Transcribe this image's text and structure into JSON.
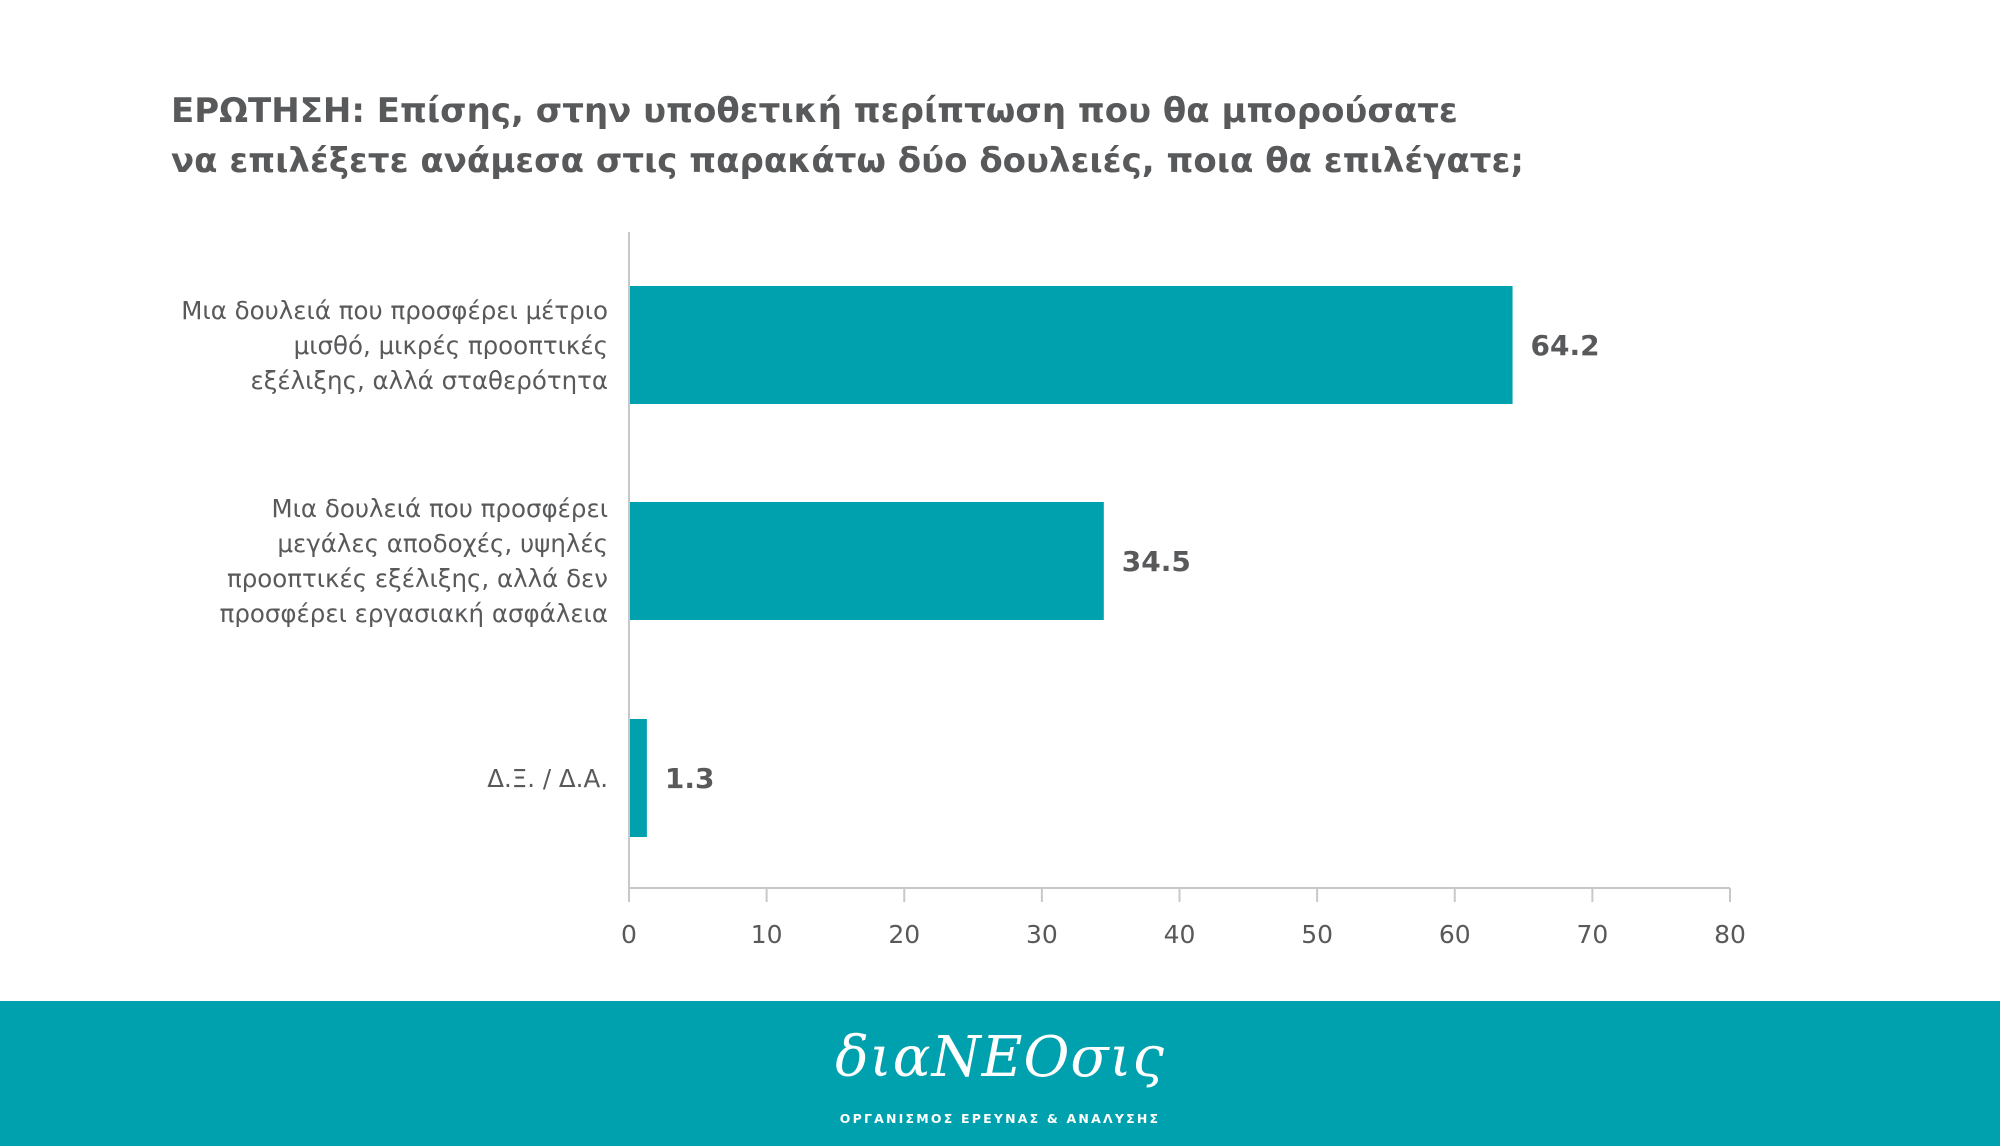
{
  "chart_data": {
    "type": "bar",
    "orientation": "horizontal",
    "title_lines": [
      "ΕΡΩΤΗΣΗ: Επίσης, στην υποθετική περίπτωση που θα μπορούσατε",
      "να επιλέξετε ανάμεσα στις παρακάτω δύο δουλειές, ποια θα επιλέγατε;"
    ],
    "categories": [
      [
        "Μια δουλειά που προσφέρει μέτριο",
        "μισθό, μικρές προοπτικές",
        "εξέλιξης, αλλά σταθερότητα"
      ],
      [
        "Μια δουλειά που προσφέρει",
        "μεγάλες αποδοχές, υψηλές",
        "προοπτικές εξέλιξης, αλλά δεν",
        "προσφέρει εργασιακή ασφάλεια"
      ],
      [
        "Δ.Ξ. / Δ.Α."
      ]
    ],
    "values": [
      64.2,
      34.5,
      1.3
    ],
    "value_labels": [
      "64.2",
      "34.5",
      "1.3"
    ],
    "xlim": [
      0,
      80
    ],
    "xticks": [
      0,
      10,
      20,
      30,
      40,
      50,
      60,
      70,
      80
    ],
    "xtick_labels": [
      "0",
      "10",
      "20",
      "30",
      "40",
      "50",
      "60",
      "70",
      "80"
    ],
    "grid": false,
    "legend": "none",
    "bar_color": "#00a1ae"
  },
  "footer": {
    "logo_text": "διαΝΕΟσις",
    "logo_subtitle": "ΟΡΓΑΝΙΣΜΟΣ ΕΡΕΥΝΑΣ & ΑΝΑΛΥΣΗΣ",
    "background_color": "#00a1ae"
  }
}
